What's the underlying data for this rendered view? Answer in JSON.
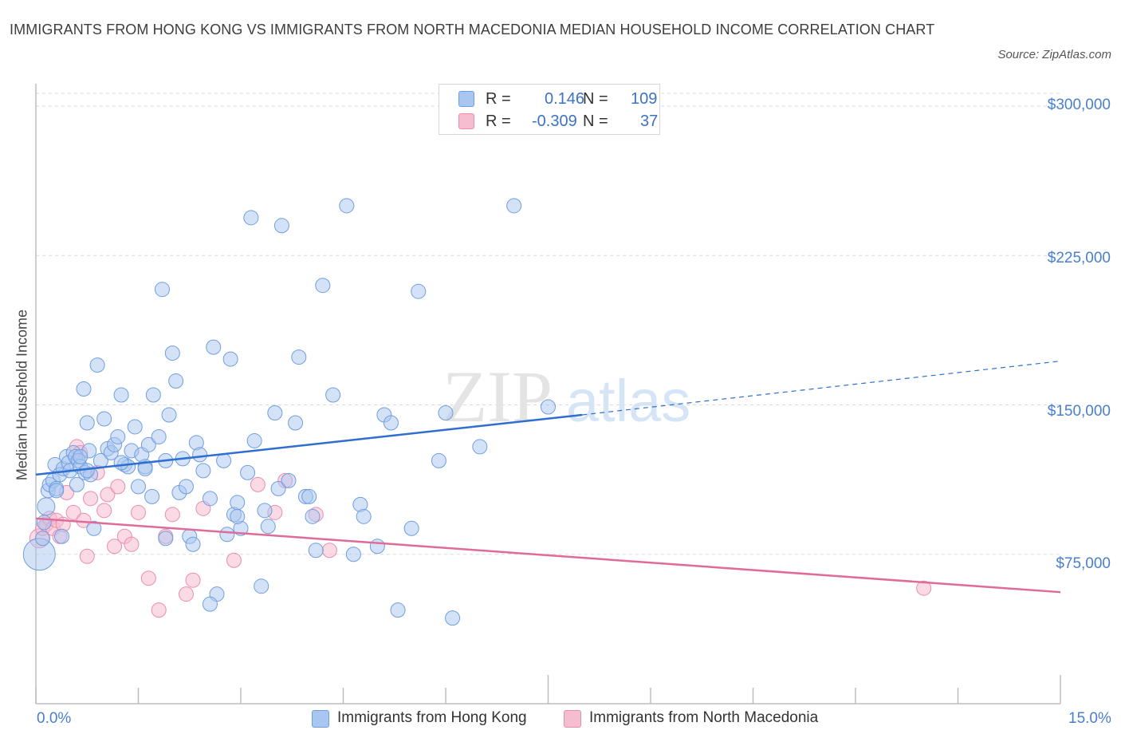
{
  "header": {
    "title": "IMMIGRANTS FROM HONG KONG VS IMMIGRANTS FROM NORTH MACEDONIA MEDIAN HOUSEHOLD INCOME CORRELATION CHART",
    "source": "Source: ZipAtlas.com"
  },
  "watermark": {
    "zip": "ZIP",
    "atlas": "atlas"
  },
  "legend_top": {
    "rows": [
      {
        "r_label": "R =",
        "r_value": "0.146",
        "n_label": "N =",
        "n_value": "109"
      },
      {
        "r_label": "R =",
        "r_value": "-0.309",
        "n_label": "N =",
        "n_value": "37"
      }
    ]
  },
  "legend_bottom": {
    "series1": "Immigrants from Hong Kong",
    "series2": "Immigrants from North Macedonia"
  },
  "colors": {
    "blue_fill": "#a9c6f0",
    "blue_stroke": "#6f9edf",
    "blue_line": "#2f6fd0",
    "pink_fill": "#f6bcd0",
    "pink_stroke": "#e98db0",
    "pink_line": "#e06b98",
    "grid": "#d9d9d9",
    "tick_text": "#4a7fcf"
  },
  "chart_data": {
    "type": "scatter",
    "title": "IMMIGRANTS FROM HONG KONG VS IMMIGRANTS FROM NORTH MACEDONIA MEDIAN HOUSEHOLD INCOME CORRELATION CHART",
    "xlabel": "",
    "ylabel": "Median Household Income",
    "xlim": [
      0,
      15
    ],
    "ylim": [
      0,
      300000
    ],
    "x_tick_labels": [
      "0.0%",
      "15.0%"
    ],
    "y_ticks": [
      75000,
      150000,
      225000,
      300000
    ],
    "y_tick_labels": [
      "$75,000",
      "$150,000",
      "$225,000",
      "$300,000"
    ],
    "grid": true,
    "legend_position": "bottom",
    "series": [
      {
        "name": "Immigrants from Hong Kong",
        "R": 0.146,
        "N": 109,
        "trend": {
          "x": [
            0.0,
            8.0
          ],
          "y": [
            115000,
            145000
          ],
          "dashed_extension_to": [
            15.0,
            172000
          ]
        },
        "points": [
          [
            0.05,
            75000
          ],
          [
            0.1,
            83000
          ],
          [
            0.12,
            91000
          ],
          [
            0.15,
            99000
          ],
          [
            0.18,
            107000
          ],
          [
            0.2,
            110000
          ],
          [
            0.25,
            112000
          ],
          [
            0.28,
            120000
          ],
          [
            0.3,
            108000
          ],
          [
            0.35,
            115000
          ],
          [
            0.38,
            84000
          ],
          [
            0.4,
            118000
          ],
          [
            0.45,
            124000
          ],
          [
            0.48,
            121000
          ],
          [
            0.5,
            117000
          ],
          [
            0.55,
            126000
          ],
          [
            0.58,
            124000
          ],
          [
            0.6,
            110000
          ],
          [
            0.62,
            122000
          ],
          [
            0.65,
            119000
          ],
          [
            0.7,
            158000
          ],
          [
            0.72,
            116000
          ],
          [
            0.75,
            141000
          ],
          [
            0.78,
            127000
          ],
          [
            0.8,
            115000
          ],
          [
            0.85,
            88000
          ],
          [
            0.9,
            170000
          ],
          [
            0.95,
            122000
          ],
          [
            1.0,
            143000
          ],
          [
            1.05,
            128000
          ],
          [
            1.1,
            126000
          ],
          [
            1.15,
            130000
          ],
          [
            1.2,
            134000
          ],
          [
            1.25,
            155000
          ],
          [
            1.3,
            120000
          ],
          [
            1.35,
            119000
          ],
          [
            1.4,
            127000
          ],
          [
            1.45,
            139000
          ],
          [
            1.5,
            109000
          ],
          [
            1.55,
            125000
          ],
          [
            1.6,
            119000
          ],
          [
            1.65,
            130000
          ],
          [
            1.7,
            104000
          ],
          [
            1.72,
            155000
          ],
          [
            1.8,
            134000
          ],
          [
            1.85,
            208000
          ],
          [
            1.9,
            122000
          ],
          [
            1.95,
            145000
          ],
          [
            2.0,
            176000
          ],
          [
            2.05,
            162000
          ],
          [
            2.1,
            106000
          ],
          [
            2.15,
            123000
          ],
          [
            2.2,
            109000
          ],
          [
            2.25,
            84000
          ],
          [
            2.3,
            80000
          ],
          [
            2.35,
            131000
          ],
          [
            2.4,
            125000
          ],
          [
            2.45,
            117000
          ],
          [
            2.55,
            103000
          ],
          [
            2.6,
            179000
          ],
          [
            2.65,
            55000
          ],
          [
            2.75,
            122000
          ],
          [
            2.8,
            85000
          ],
          [
            2.85,
            173000
          ],
          [
            2.9,
            95000
          ],
          [
            2.95,
            101000
          ],
          [
            3.0,
            88000
          ],
          [
            3.1,
            116000
          ],
          [
            3.15,
            244000
          ],
          [
            3.2,
            132000
          ],
          [
            3.3,
            59000
          ],
          [
            3.35,
            97000
          ],
          [
            3.4,
            89000
          ],
          [
            3.5,
            146000
          ],
          [
            3.55,
            108000
          ],
          [
            3.6,
            240000
          ],
          [
            3.7,
            112000
          ],
          [
            3.8,
            141000
          ],
          [
            3.85,
            174000
          ],
          [
            3.95,
            104000
          ],
          [
            4.05,
            94000
          ],
          [
            4.1,
            77000
          ],
          [
            4.2,
            210000
          ],
          [
            4.35,
            155000
          ],
          [
            4.55,
            250000
          ],
          [
            4.65,
            75000
          ],
          [
            4.75,
            100000
          ],
          [
            4.8,
            94000
          ],
          [
            5.0,
            79000
          ],
          [
            5.1,
            145000
          ],
          [
            5.2,
            141000
          ],
          [
            5.5,
            88000
          ],
          [
            5.6,
            207000
          ],
          [
            5.9,
            122000
          ],
          [
            6.0,
            146000
          ],
          [
            6.1,
            43000
          ],
          [
            6.5,
            129000
          ],
          [
            7.0,
            250000
          ],
          [
            7.5,
            149000
          ],
          [
            2.55,
            50000
          ],
          [
            1.25,
            121000
          ],
          [
            2.95,
            94000
          ],
          [
            4.0,
            104000
          ],
          [
            0.3,
            107000
          ],
          [
            0.75,
            117000
          ],
          [
            1.6,
            118000
          ],
          [
            5.3,
            47000
          ],
          [
            0.65,
            124000
          ],
          [
            1.9,
            83000
          ]
        ]
      },
      {
        "name": "Immigrants from North Macedonia",
        "R": -0.309,
        "N": 37,
        "trend": {
          "x": [
            0.0,
            15.0
          ],
          "y": [
            93000,
            56000
          ]
        },
        "points": [
          [
            0.05,
            83000
          ],
          [
            0.1,
            88000
          ],
          [
            0.15,
            90000
          ],
          [
            0.2,
            93000
          ],
          [
            0.25,
            88000
          ],
          [
            0.3,
            92000
          ],
          [
            0.35,
            84000
          ],
          [
            0.45,
            106000
          ],
          [
            0.55,
            96000
          ],
          [
            0.6,
            129000
          ],
          [
            0.65,
            126000
          ],
          [
            0.7,
            92000
          ],
          [
            0.75,
            74000
          ],
          [
            0.8,
            103000
          ],
          [
            0.9,
            116000
          ],
          [
            1.0,
            97000
          ],
          [
            1.05,
            105000
          ],
          [
            1.15,
            79000
          ],
          [
            1.2,
            109000
          ],
          [
            1.3,
            84000
          ],
          [
            1.4,
            80000
          ],
          [
            1.5,
            96000
          ],
          [
            1.65,
            63000
          ],
          [
            1.8,
            47000
          ],
          [
            1.9,
            84000
          ],
          [
            2.0,
            95000
          ],
          [
            2.2,
            55000
          ],
          [
            2.3,
            62000
          ],
          [
            2.45,
            98000
          ],
          [
            2.9,
            72000
          ],
          [
            3.25,
            110000
          ],
          [
            3.5,
            96000
          ],
          [
            3.65,
            112000
          ],
          [
            4.1,
            95000
          ],
          [
            4.3,
            77000
          ],
          [
            13.0,
            58000
          ],
          [
            0.4,
            90000
          ]
        ]
      }
    ]
  }
}
